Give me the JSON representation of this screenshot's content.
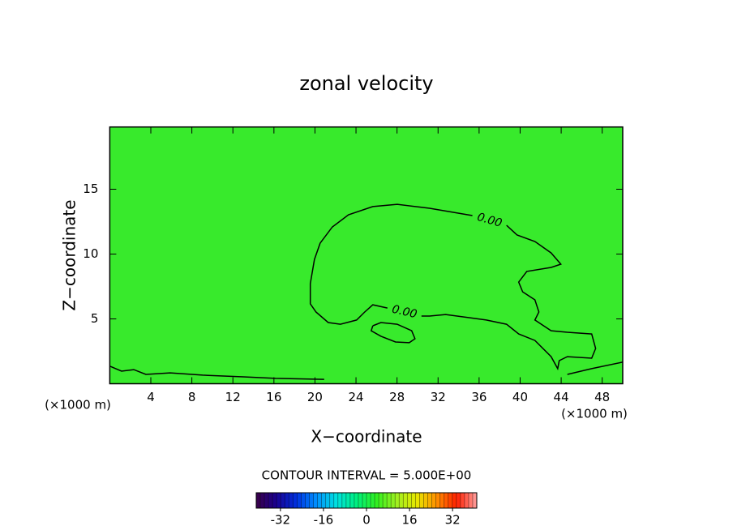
{
  "chart_data": {
    "type": "contour",
    "title": "zonal velocity",
    "x_label": "X−coordinate",
    "y_label": "Z−coordinate",
    "unit_labels": [
      "(×1000 m)",
      "(×1000 m)"
    ],
    "xlim": [
      0,
      50
    ],
    "ylim": [
      0,
      19.8
    ],
    "xticks": [
      4,
      8,
      12,
      16,
      20,
      24,
      28,
      32,
      36,
      40,
      44,
      48
    ],
    "yticks": [
      5,
      10,
      15
    ],
    "color": "#38ea2c",
    "contour_color": "#000000",
    "contours": [
      {
        "level": 0,
        "level_label": "0.00",
        "closed": true,
        "x": [
          38.67,
          39.7,
          41.44,
          43.02,
          43.97,
          43.02,
          40.65,
          39.86,
          40.25,
          41.44,
          41.83,
          41.44,
          43.02,
          44.6,
          46.97,
          47.36,
          46.97,
          44.6,
          43.81,
          43.66,
          43.02,
          41.44,
          39.86,
          38.67,
          36.7,
          35.11,
          32.74,
          31.17,
          30.38,
          null,
          27.06,
          25.64,
          24.85,
          24.06,
          22.48,
          21.29,
          20.1,
          19.55,
          19.55,
          19.95,
          20.5,
          21.69,
          23.27,
          25.64,
          28.02,
          31.17,
          35.35
        ],
        "y": [
          12.22,
          11.47,
          10.97,
          10.09,
          9.22,
          8.97,
          8.66,
          7.84,
          7.09,
          6.47,
          5.53,
          4.91,
          4.09,
          3.97,
          3.84,
          2.72,
          1.97,
          2.09,
          1.78,
          1.16,
          2.09,
          3.34,
          3.84,
          4.59,
          4.91,
          5.09,
          5.34,
          5.22,
          5.22,
          null,
          5.84,
          6.09,
          5.53,
          4.91,
          4.59,
          4.72,
          5.53,
          6.16,
          7.72,
          9.59,
          10.84,
          12.09,
          13.03,
          13.66,
          13.84,
          13.53,
          12.97
        ]
      },
      {
        "level": 0,
        "x": [
          25.64,
          26.43,
          28.01,
          29.43,
          29.75,
          29.19,
          27.85,
          26.43,
          25.48,
          25.64
        ],
        "y": [
          4.47,
          4.72,
          4.59,
          4.09,
          3.47,
          3.16,
          3.22,
          3.66,
          4.09,
          4.47
        ]
      },
      {
        "level": 0,
        "x": [
          0.05,
          1.15,
          2.34,
          3.52,
          5.89,
          9.05,
          13.0,
          16.16,
          20.9
        ],
        "y": [
          1.34,
          0.97,
          1.09,
          0.72,
          0.84,
          0.66,
          0.53,
          0.41,
          0.34
        ]
      },
      {
        "level": 0,
        "x": [
          44.6,
          46.97,
          49.97
        ],
        "y": [
          0.72,
          1.16,
          1.66
        ]
      }
    ],
    "colorbar": {
      "title": "CONTOUR INTERVAL = 5.000E+00",
      "lim": [
        -41,
        41
      ],
      "ticks": [
        -32,
        -16,
        0,
        16,
        32
      ],
      "colormap": [
        "#3a0048",
        "#1a0090",
        "#0030e0",
        "#0090ff",
        "#00e0e0",
        "#00f080",
        "#30f020",
        "#a0f020",
        "#e8e800",
        "#ff9000",
        "#ff2000",
        "#ffa0a0"
      ]
    }
  }
}
